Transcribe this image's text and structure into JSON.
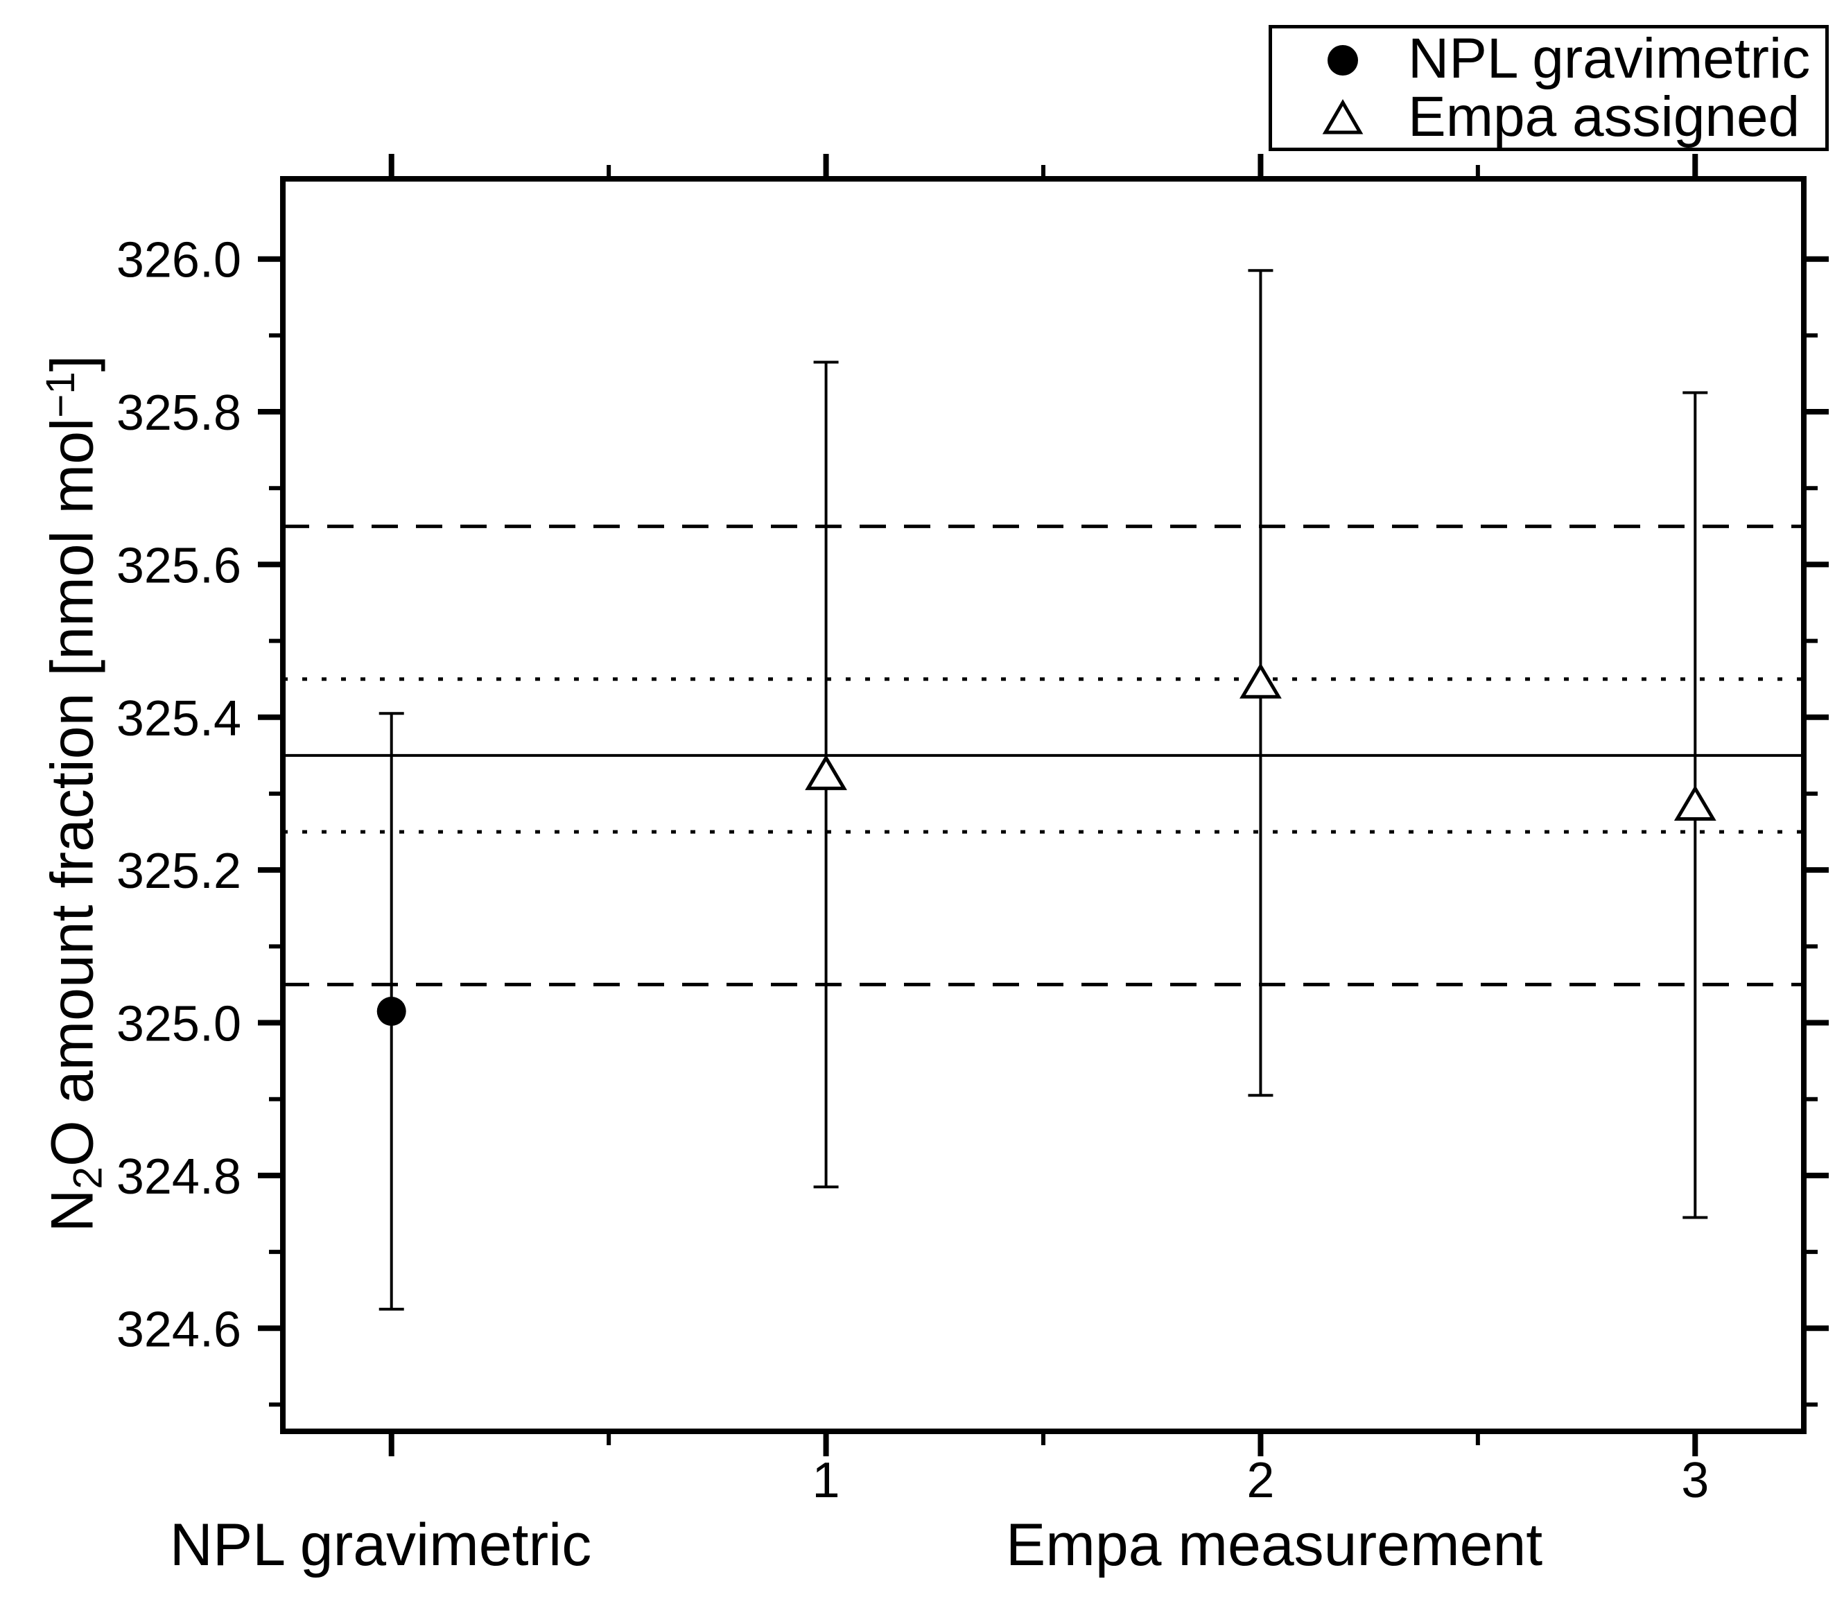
{
  "figure": {
    "background": "#ffffff",
    "foreground": "#000000"
  },
  "legend": {
    "position": "top-right",
    "border_color": "#000000",
    "entries": [
      {
        "marker": "filled-circle",
        "label": "NPL gravimetric"
      },
      {
        "marker": "open-triangle-up",
        "label": "Empa assigned"
      }
    ]
  },
  "chart_data": {
    "type": "scatter",
    "title": "",
    "xlabel_left": "NPL gravimetric",
    "xlabel_right": "Empa measurement",
    "ylabel": "N2O amount fraction [nmol mol-1]",
    "ylabel_parts": {
      "pre": "N",
      "sub": "2",
      "mid": "O amount fraction [nmol mol",
      "sup": "−1",
      "post": "]"
    },
    "xlim": [
      -0.25,
      3.25
    ],
    "ylim": [
      324.465,
      326.105
    ],
    "grid": false,
    "legend_position": "top-right",
    "x_major_ticks": [
      0,
      1,
      2,
      3
    ],
    "x_tick_labels": [
      "",
      "1",
      "2",
      "3"
    ],
    "x_minor_ticks": [
      0.5,
      1.5,
      2.5
    ],
    "y_major_ticks": [
      326.0,
      325.8,
      325.6,
      325.4,
      325.2,
      325.0,
      324.8,
      324.6
    ],
    "y_tick_labels": [
      "326.0",
      "325.8",
      "325.6",
      "325.4",
      "325.2",
      "325.0",
      "324.8",
      "324.6"
    ],
    "y_minor_ticks": [
      325.9,
      325.7,
      325.5,
      325.3,
      325.1,
      324.9,
      324.7,
      324.5
    ],
    "series": [
      {
        "name": "NPL gravimetric",
        "marker": "filled-circle",
        "points": [
          {
            "x": 0,
            "y": 325.015,
            "err": 0.39
          }
        ]
      },
      {
        "name": "Empa assigned",
        "marker": "open-triangle-up",
        "points": [
          {
            "x": 1,
            "y": 325.325,
            "err": 0.54
          },
          {
            "x": 2,
            "y": 325.445,
            "err": 0.54
          },
          {
            "x": 3,
            "y": 325.285,
            "err": 0.54
          }
        ]
      }
    ],
    "reference_lines": [
      {
        "y": 325.35,
        "style": "solid"
      },
      {
        "y": 325.45,
        "style": "dotted"
      },
      {
        "y": 325.25,
        "style": "dotted"
      },
      {
        "y": 325.65,
        "style": "dashed"
      },
      {
        "y": 325.05,
        "style": "dashed"
      }
    ]
  }
}
